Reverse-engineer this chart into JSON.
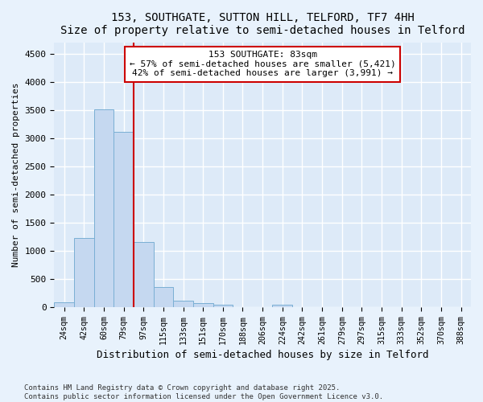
{
  "title1": "153, SOUTHGATE, SUTTON HILL, TELFORD, TF7 4HH",
  "title2": "Size of property relative to semi-detached houses in Telford",
  "xlabel": "Distribution of semi-detached houses by size in Telford",
  "ylabel": "Number of semi-detached properties",
  "categories": [
    "24sqm",
    "42sqm",
    "60sqm",
    "79sqm",
    "97sqm",
    "115sqm",
    "133sqm",
    "151sqm",
    "170sqm",
    "188sqm",
    "206sqm",
    "224sqm",
    "242sqm",
    "261sqm",
    "279sqm",
    "297sqm",
    "315sqm",
    "333sqm",
    "352sqm",
    "370sqm",
    "388sqm"
  ],
  "values": [
    80,
    1230,
    3520,
    3110,
    1160,
    350,
    110,
    65,
    45,
    0,
    0,
    45,
    0,
    0,
    0,
    0,
    0,
    0,
    0,
    0,
    0
  ],
  "bar_color": "#c5d8f0",
  "bar_edge_color": "#7aafd4",
  "red_line_x": 3.5,
  "annotation_text": "153 SOUTHGATE: 83sqm\n← 57% of semi-detached houses are smaller (5,421)\n42% of semi-detached houses are larger (3,991) →",
  "annotation_box_color": "#ffffff",
  "annotation_box_edge": "#cc0000",
  "red_line_color": "#cc0000",
  "ylim": [
    0,
    4700
  ],
  "yticks": [
    0,
    500,
    1000,
    1500,
    2000,
    2500,
    3000,
    3500,
    4000,
    4500
  ],
  "footnote1": "Contains HM Land Registry data © Crown copyright and database right 2025.",
  "footnote2": "Contains public sector information licensed under the Open Government Licence v3.0.",
  "bg_color": "#e8f2fc",
  "plot_bg_color": "#ddeaf8"
}
